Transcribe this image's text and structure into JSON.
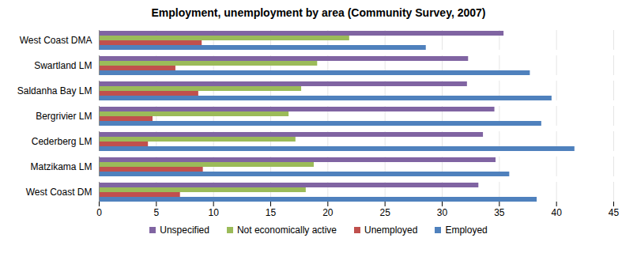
{
  "chart_data": {
    "type": "bar",
    "orientation": "horizontal",
    "title": "Employment, unemployment by area (Community Survey, 2007)",
    "categories": [
      "West Coast DMA",
      "Swartland LM",
      "Saldanha Bay LM",
      "Bergrivier LM",
      "Cederberg LM",
      "Matzikama LM",
      "West Coast DM"
    ],
    "series": [
      {
        "name": "Unspecified",
        "color": "#8064a2",
        "values": [
          35.4,
          32.3,
          32.2,
          34.6,
          33.6,
          34.7,
          33.2
        ]
      },
      {
        "name": "Not economically active",
        "color": "#9bbb59",
        "values": [
          21.9,
          19.1,
          17.7,
          16.6,
          17.2,
          18.8,
          18.1
        ]
      },
      {
        "name": "Unemployed",
        "color": "#c0504d",
        "values": [
          9.0,
          6.7,
          8.7,
          4.7,
          4.3,
          9.1,
          7.1
        ]
      },
      {
        "name": "Employed",
        "color": "#4f81bd",
        "values": [
          28.6,
          37.7,
          39.6,
          38.7,
          41.6,
          35.9,
          38.3
        ]
      }
    ],
    "xlim": [
      0,
      45
    ],
    "xticks": [
      0,
      5,
      10,
      15,
      20,
      25,
      30,
      35,
      40,
      45
    ],
    "grid": true,
    "legend": "bottom"
  }
}
